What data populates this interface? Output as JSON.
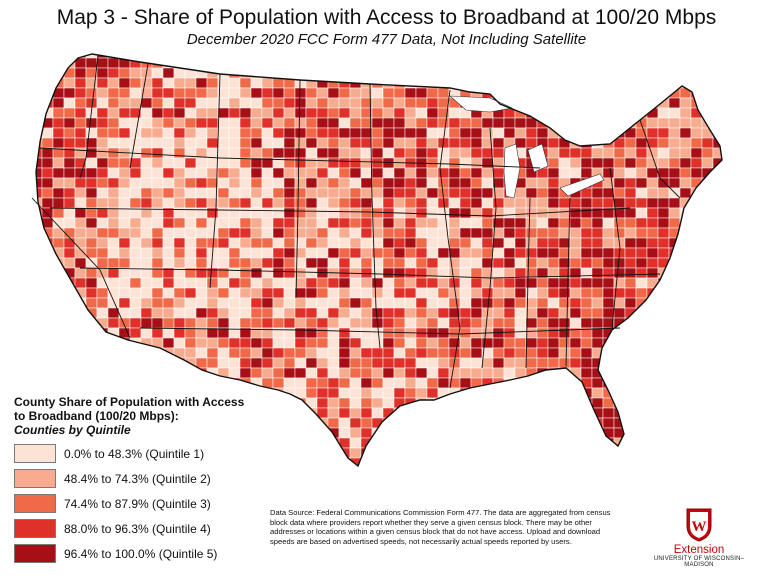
{
  "title": "Map 3 - Share of Population with Access to Broadband at 100/20 Mbps",
  "subtitle": "December 2020 FCC Form 477 Data, Not Including Satellite",
  "legend": {
    "title_line1": "County Share of Population with Access",
    "title_line2": "to Broadband (100/20 Mbps):",
    "subtitle": "Counties by Quintile",
    "items": [
      {
        "label": "0.0% to 48.3% (Quintile 1)",
        "color": "#fde3d6"
      },
      {
        "label": "48.4% to 74.3% (Quintile 2)",
        "color": "#f7ab8f"
      },
      {
        "label": "74.4% to 87.9% (Quintile 3)",
        "color": "#f06a4a"
      },
      {
        "label": "88.0% to 96.3% (Quintile 4)",
        "color": "#e0302a"
      },
      {
        "label": "96.4% to 100.0% (Quintile 5)",
        "color": "#a50f15"
      }
    ]
  },
  "source_text": "Data Source: Federal Communications Commission Form 477.  The data are aggregated from census block data where providers report whether they serve a given census block. There may be other addresses or locations within a given census block that do not have access. Upload and download speeds are based on advertised speeds, not necessarily actual speeds reported by users.",
  "logo": {
    "name": "Extension",
    "university": "UNIVERSITY OF WISCONSIN–MADISON",
    "crest_letter": "W"
  }
}
